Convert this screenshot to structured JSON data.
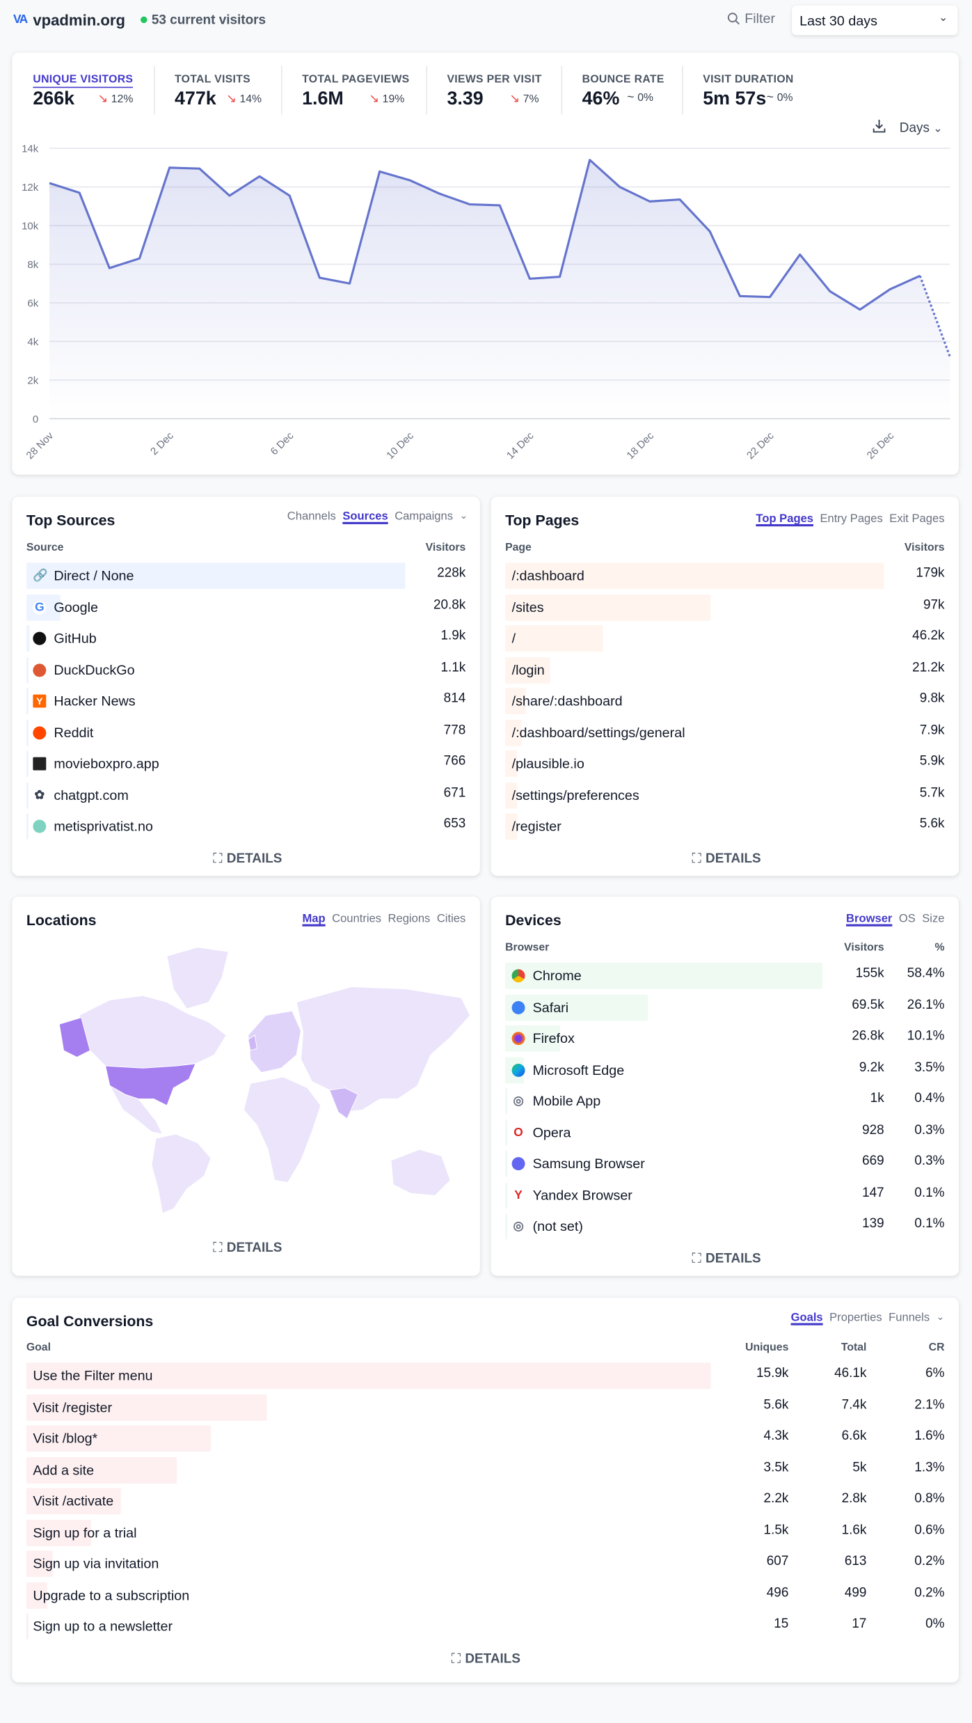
{
  "header": {
    "logo": "VA",
    "site": "vpadmin.org",
    "current_visitors": "53 current visitors",
    "filter_label": "Filter",
    "date_range": "Last 30 days"
  },
  "stats": [
    {
      "label": "UNIQUE VISITORS",
      "value": "266k",
      "change": "12%",
      "trend": "down",
      "active": true
    },
    {
      "label": "TOTAL VISITS",
      "value": "477k",
      "change": "14%",
      "trend": "down"
    },
    {
      "label": "TOTAL PAGEVIEWS",
      "value": "1.6M",
      "change": "19%",
      "trend": "down"
    },
    {
      "label": "VIEWS PER VISIT",
      "value": "3.39",
      "change": "7%",
      "trend": "down"
    },
    {
      "label": "BOUNCE RATE",
      "value": "46%",
      "change": "0%",
      "trend": "flat"
    },
    {
      "label": "VISIT DURATION",
      "value": "5m 57s",
      "change": "0%",
      "trend": "flat"
    }
  ],
  "chart_controls": {
    "interval": "Days",
    "download_icon": "download-icon"
  },
  "chart_data": {
    "type": "area",
    "x": [
      "28 Nov",
      "29 Nov",
      "30 Nov",
      "1 Dec",
      "2 Dec",
      "3 Dec",
      "4 Dec",
      "5 Dec",
      "6 Dec",
      "7 Dec",
      "8 Dec",
      "9 Dec",
      "10 Dec",
      "11 Dec",
      "12 Dec",
      "13 Dec",
      "14 Dec",
      "15 Dec",
      "16 Dec",
      "17 Dec",
      "18 Dec",
      "19 Dec",
      "20 Dec",
      "21 Dec",
      "22 Dec",
      "23 Dec",
      "24 Dec",
      "25 Dec",
      "26 Dec",
      "27 Dec",
      "28 Dec"
    ],
    "series": [
      {
        "values": [
          12200,
          11700,
          7800,
          8300,
          13000,
          12950,
          11550,
          12550,
          11550,
          7300,
          7000,
          12800,
          12350,
          11650,
          11100,
          11050,
          7250,
          7350,
          13400,
          12000,
          11250,
          11350,
          9700,
          6350,
          6300,
          8500,
          6600,
          5650,
          6700,
          7400,
          3200
        ]
      }
    ],
    "incomplete_last_point": true,
    "x_tick_labels": [
      "28 Nov",
      "2 Dec",
      "6 Dec",
      "10 Dec",
      "14 Dec",
      "18 Dec",
      "22 Dec",
      "26 Dec"
    ],
    "y_tick_labels": [
      "0",
      "2k",
      "4k",
      "6k",
      "8k",
      "10k",
      "12k",
      "14k"
    ],
    "ylim": [
      0,
      14000
    ],
    "grid": true,
    "color": "#6574cd"
  },
  "sources": {
    "title": "Top Sources",
    "tabs": [
      "Channels",
      "Sources",
      "Campaigns"
    ],
    "active_tab": "Sources",
    "col_label": "Source",
    "col_value": "Visitors",
    "details": "DETAILS",
    "bar_color": "#eef4ff",
    "rows": [
      {
        "label": "Direct / None",
        "value": "228k",
        "n": 228000,
        "icon": "link-icon"
      },
      {
        "label": "Google",
        "value": "20.8k",
        "n": 20800,
        "icon": "google-icon"
      },
      {
        "label": "GitHub",
        "value": "1.9k",
        "n": 1900,
        "icon": "github-icon"
      },
      {
        "label": "DuckDuckGo",
        "value": "1.1k",
        "n": 1100,
        "icon": "duckduckgo-icon"
      },
      {
        "label": "Hacker News",
        "value": "814",
        "n": 814,
        "icon": "hacker-news-icon"
      },
      {
        "label": "Reddit",
        "value": "778",
        "n": 778,
        "icon": "reddit-icon"
      },
      {
        "label": "movieboxpro.app",
        "value": "766",
        "n": 766,
        "icon": "moviebox-icon"
      },
      {
        "label": "chatgpt.com",
        "value": "671",
        "n": 671,
        "icon": "chatgpt-icon"
      },
      {
        "label": "metisprivatist.no",
        "value": "653",
        "n": 653,
        "icon": "favicon-placeholder-icon"
      }
    ]
  },
  "pages": {
    "title": "Top Pages",
    "tabs": [
      "Top Pages",
      "Entry Pages",
      "Exit Pages"
    ],
    "active_tab": "Top Pages",
    "col_label": "Page",
    "col_value": "Visitors",
    "details": "DETAILS",
    "bar_color": "#fff5ee",
    "rows": [
      {
        "label": "/:dashboard",
        "value": "179k",
        "n": 179000
      },
      {
        "label": "/sites",
        "value": "97k",
        "n": 97000
      },
      {
        "label": "/",
        "value": "46.2k",
        "n": 46200
      },
      {
        "label": "/login",
        "value": "21.2k",
        "n": 21200
      },
      {
        "label": "/share/:dashboard",
        "value": "9.8k",
        "n": 9800
      },
      {
        "label": "/:dashboard/settings/general",
        "value": "7.9k",
        "n": 7900
      },
      {
        "label": "/plausible.io",
        "value": "5.9k",
        "n": 5900
      },
      {
        "label": "/settings/preferences",
        "value": "5.7k",
        "n": 5700
      },
      {
        "label": "/register",
        "value": "5.6k",
        "n": 5600
      }
    ]
  },
  "locations": {
    "title": "Locations",
    "tabs": [
      "Map",
      "Countries",
      "Regions",
      "Cities"
    ],
    "active_tab": "Map",
    "details": "DETAILS",
    "map_colors": {
      "base": "#ebe4fb",
      "mid": "#cdb8f5",
      "high": "#a57ef0"
    }
  },
  "devices": {
    "title": "Devices",
    "tabs": [
      "Browser",
      "OS",
      "Size"
    ],
    "active_tab": "Browser",
    "col_label": "Browser",
    "col_value": "Visitors",
    "col_pct": "%",
    "details": "DETAILS",
    "bar_color": "#effbf2",
    "rows": [
      {
        "label": "Chrome",
        "value": "155k",
        "pct": "58.4%",
        "n": 155000,
        "icon": "chrome-icon"
      },
      {
        "label": "Safari",
        "value": "69.5k",
        "pct": "26.1%",
        "n": 69500,
        "icon": "safari-icon"
      },
      {
        "label": "Firefox",
        "value": "26.8k",
        "pct": "10.1%",
        "n": 26800,
        "icon": "firefox-icon"
      },
      {
        "label": "Microsoft Edge",
        "value": "9.2k",
        "pct": "3.5%",
        "n": 9200,
        "icon": "edge-icon"
      },
      {
        "label": "Mobile App",
        "value": "1k",
        "pct": "0.4%",
        "n": 1000,
        "icon": "globe-icon"
      },
      {
        "label": "Opera",
        "value": "928",
        "pct": "0.3%",
        "n": 928,
        "icon": "opera-icon"
      },
      {
        "label": "Samsung Browser",
        "value": "669",
        "pct": "0.3%",
        "n": 669,
        "icon": "samsung-browser-icon"
      },
      {
        "label": "Yandex Browser",
        "value": "147",
        "pct": "0.1%",
        "n": 147,
        "icon": "yandex-icon"
      },
      {
        "label": "(not set)",
        "value": "139",
        "pct": "0.1%",
        "n": 139,
        "icon": "globe-icon"
      }
    ]
  },
  "goals": {
    "title": "Goal Conversions",
    "tabs": [
      "Goals",
      "Properties",
      "Funnels"
    ],
    "active_tab": "Goals",
    "col_label": "Goal",
    "col_uniques": "Uniques",
    "col_total": "Total",
    "col_cr": "CR",
    "details": "DETAILS",
    "bar_color": "#fef0f0",
    "rows": [
      {
        "label": "Use the Filter menu",
        "uniques": "15.9k",
        "total": "46.1k",
        "cr": "6%",
        "n": 15900
      },
      {
        "label": "Visit /register",
        "uniques": "5.6k",
        "total": "7.4k",
        "cr": "2.1%",
        "n": 5600
      },
      {
        "label": "Visit /blog*",
        "uniques": "4.3k",
        "total": "6.6k",
        "cr": "1.6%",
        "n": 4300
      },
      {
        "label": "Add a site",
        "uniques": "3.5k",
        "total": "5k",
        "cr": "1.3%",
        "n": 3500
      },
      {
        "label": "Visit /activate",
        "uniques": "2.2k",
        "total": "2.8k",
        "cr": "0.8%",
        "n": 2200
      },
      {
        "label": "Sign up for a trial",
        "uniques": "1.5k",
        "total": "1.6k",
        "cr": "0.6%",
        "n": 1500
      },
      {
        "label": "Sign up via invitation",
        "uniques": "607",
        "total": "613",
        "cr": "0.2%",
        "n": 607
      },
      {
        "label": "Upgrade to a subscription",
        "uniques": "496",
        "total": "499",
        "cr": "0.2%",
        "n": 496
      },
      {
        "label": "Sign up to a newsletter",
        "uniques": "15",
        "total": "17",
        "cr": "0%",
        "n": 15
      }
    ]
  }
}
